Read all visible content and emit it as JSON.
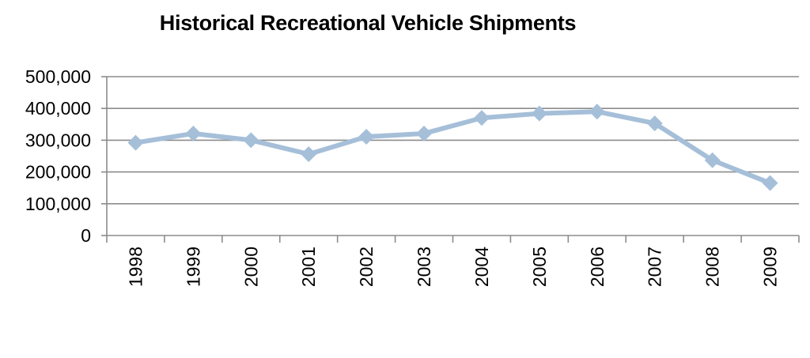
{
  "chart_data": {
    "type": "line",
    "title": "Historical Recreational Vehicle Shipments",
    "xlabel": "",
    "ylabel": "",
    "categories": [
      "1998",
      "1999",
      "2000",
      "2001",
      "2002",
      "2003",
      "2004",
      "2005",
      "2006",
      "2007",
      "2008",
      "2009"
    ],
    "series": [
      {
        "values": [
          292000,
          321000,
          300000,
          256000,
          311000,
          321000,
          370000,
          384000,
          390000,
          353000,
          237000,
          165000
        ]
      }
    ],
    "ylim": [
      0,
      500000
    ],
    "yticks": [
      "0",
      "100,000",
      "200,000",
      "300,000",
      "400,000",
      "500,000"
    ],
    "grid": true,
    "legend": "none",
    "line_color": "#a6bfd9",
    "grid_color": "#8c8c8c"
  }
}
